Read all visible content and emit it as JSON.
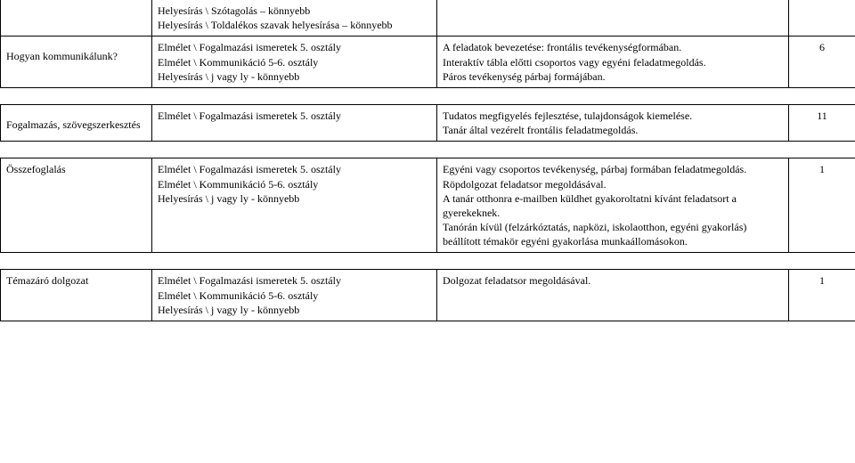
{
  "rows": [
    {
      "col1": "",
      "col2": "Helyesírás \\ Szótagolás – könnyebb\nHelyesírás \\ Toldalékos szavak helyesírása – könnyebb",
      "col3": "",
      "col4": ""
    },
    {
      "col1": "Hogyan kommunikálunk?",
      "col2": "Elmélet \\ Fogalmazási ismeretek 5. osztály\nElmélet \\ Kommunikáció 5-6. osztály\nHelyesírás \\ j vagy ly - könnyebb",
      "col3": "A feladatok bevezetése: frontális tevékenységformában.\nInteraktív tábla előtti csoportos vagy egyéni feladatmegoldás.\nPáros tevékenység  párbaj formájában.",
      "col4": "6"
    },
    {
      "col1": "Fogalmazás, szövegszerkesztés",
      "col2": "Elmélet \\ Fogalmazási ismeretek 5. osztály",
      "col3": "Tudatos megfigyelés fejlesztése, tulajdonságok kiemelése.\nTanár által vezérelt frontális feladatmegoldás.",
      "col4": "11"
    },
    {
      "col1": "Összefoglalás",
      "col2": "Elmélet \\ Fogalmazási ismeretek 5. osztály\nElmélet \\ Kommunikáció 5-6. osztály\nHelyesírás \\ j vagy ly - könnyebb",
      "col3": "Egyéni vagy csoportos tevékenység, párbaj formában feladatmegoldás.\nRöpdolgozat feladatsor megoldásával.\nA tanár otthonra e-mailben küldhet gyakoroltatni kívánt feladatsort a gyerekeknek.\nTanórán kívül (felzárkóztatás, napközi, iskolaotthon, egyéni gyakorlás) beállított témakör egyéni gyakorlása munkaállomásokon.",
      "col4": "1"
    },
    {
      "col1": "Témazáró dolgozat",
      "col2": "Elmélet \\ Fogalmazási ismeretek 5. osztály\nElmélet \\ Kommunikáció 5-6. osztály\nHelyesírás \\ j vagy ly - könnyebb",
      "col3": "Dolgozat feladatsor megoldásával.",
      "col4": "1"
    }
  ]
}
